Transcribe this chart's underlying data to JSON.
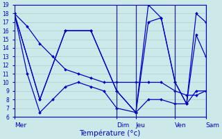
{
  "xlabel": "Température (°c)",
  "background_color": "#cce8e8",
  "grid_color": "#aacfcf",
  "line_color": "#0000cc",
  "sep_color": "#222299",
  "ylim": [
    6,
    19
  ],
  "yticks": [
    6,
    7,
    8,
    9,
    10,
    11,
    12,
    13,
    14,
    15,
    16,
    17,
    18,
    19
  ],
  "day_labels": [
    "Mer",
    "Dim",
    "Jeu",
    "Ven",
    "Sam"
  ],
  "day_positions": [
    0.0,
    0.535,
    0.635,
    0.84,
    1.0
  ],
  "lines": [
    {
      "x": [
        0.0,
        0.067,
        0.133,
        0.2,
        0.267,
        0.333,
        0.4,
        0.467,
        0.535,
        0.635,
        0.7,
        0.767,
        0.84,
        0.9,
        0.95,
        1.0
      ],
      "y": [
        18,
        16.5,
        14.5,
        13,
        11.5,
        11,
        10.5,
        10,
        10,
        10,
        10,
        10,
        9,
        8.5,
        8.5,
        9
      ]
    },
    {
      "x": [
        0.0,
        0.133,
        0.267,
        0.4,
        0.535,
        0.635,
        0.7,
        0.767,
        0.84,
        0.9,
        0.95,
        1.0
      ],
      "y": [
        18,
        8,
        16,
        16,
        9,
        6.5,
        19,
        17.5,
        10,
        7.5,
        18,
        17
      ]
    },
    {
      "x": [
        0.0,
        0.133,
        0.267,
        0.4,
        0.535,
        0.635,
        0.7,
        0.767,
        0.84,
        0.9,
        0.95,
        1.0
      ],
      "y": [
        18,
        8,
        16,
        16,
        9,
        6.5,
        17,
        17.5,
        10,
        7.5,
        15.5,
        13
      ]
    },
    {
      "x": [
        0.0,
        0.067,
        0.133,
        0.2,
        0.267,
        0.333,
        0.4,
        0.467,
        0.535,
        0.635,
        0.7,
        0.767,
        0.84,
        0.9,
        0.95,
        1.0
      ],
      "y": [
        18,
        11,
        6.5,
        8,
        9.5,
        10,
        9.5,
        9,
        7,
        6.5,
        8,
        8,
        7.5,
        7.5,
        9,
        9
      ]
    }
  ]
}
